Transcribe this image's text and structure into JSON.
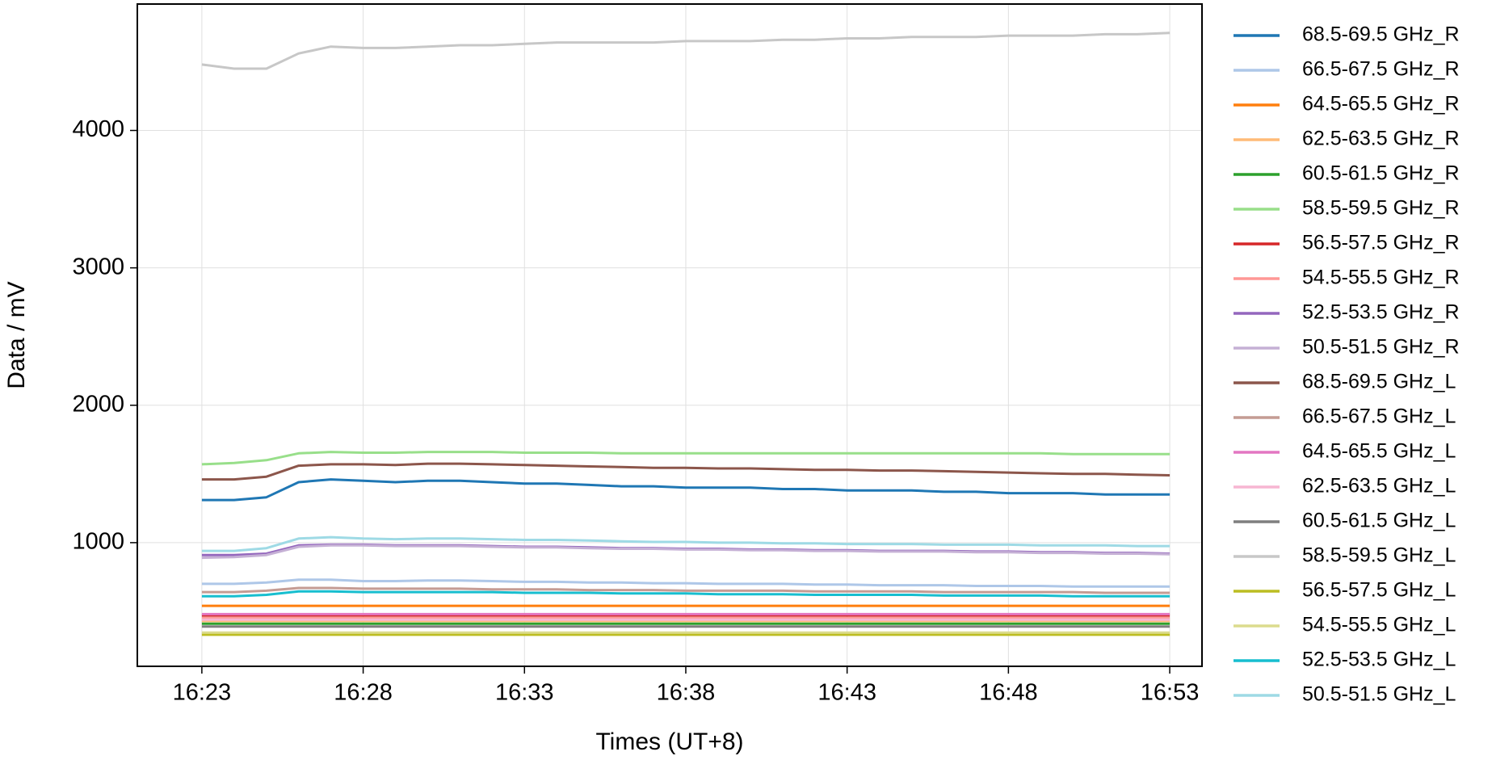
{
  "chart_data": {
    "type": "line",
    "x_label": "Times (UT+8)",
    "y_label": "Data / mV",
    "x": [
      "16:23",
      "16:24",
      "16:25",
      "16:26",
      "16:27",
      "16:28",
      "16:29",
      "16:30",
      "16:31",
      "16:32",
      "16:33",
      "16:34",
      "16:35",
      "16:36",
      "16:37",
      "16:38",
      "16:39",
      "16:40",
      "16:41",
      "16:42",
      "16:43",
      "16:44",
      "16:45",
      "16:46",
      "16:47",
      "16:48",
      "16:49",
      "16:50",
      "16:51",
      "16:52",
      "16:53"
    ],
    "xlim": [
      "16:21",
      "16:54"
    ],
    "xticks": [
      "16:23",
      "16:28",
      "16:33",
      "16:38",
      "16:43",
      "16:48",
      "16:53"
    ],
    "ylim": [
      100,
      4920
    ],
    "yticks": [
      1000,
      2000,
      3000,
      4000
    ],
    "grid": true,
    "legend": "outside-right",
    "series": [
      {
        "name": "68.5-69.5 GHz_R",
        "color": "#1f77b4",
        "values": [
          1310,
          1310,
          1330,
          1440,
          1460,
          1450,
          1440,
          1450,
          1450,
          1440,
          1430,
          1430,
          1420,
          1410,
          1410,
          1400,
          1400,
          1400,
          1390,
          1390,
          1380,
          1380,
          1380,
          1370,
          1370,
          1360,
          1360,
          1360,
          1350,
          1350,
          1350
        ]
      },
      {
        "name": "66.5-67.5 GHz_R",
        "color": "#aec7e8",
        "values": [
          700,
          700,
          710,
          730,
          730,
          720,
          720,
          725,
          725,
          720,
          715,
          715,
          710,
          710,
          705,
          705,
          700,
          700,
          700,
          695,
          695,
          690,
          690,
          690,
          685,
          685,
          685,
          680,
          680,
          680,
          680
        ]
      },
      {
        "name": "64.5-65.5 GHz_R",
        "color": "#ff7f0e",
        "values": [
          540,
          540,
          540,
          540,
          540,
          540,
          540,
          540,
          540,
          540,
          540,
          540,
          540,
          540,
          540,
          540,
          540,
          540,
          540,
          540,
          540,
          540,
          540,
          540,
          540,
          540,
          540,
          540,
          540,
          540,
          540
        ]
      },
      {
        "name": "62.5-63.5 GHz_R",
        "color": "#ffbb78",
        "values": [
          430,
          430,
          430,
          430,
          430,
          430,
          430,
          430,
          430,
          430,
          430,
          430,
          430,
          430,
          430,
          430,
          430,
          430,
          430,
          430,
          430,
          430,
          430,
          430,
          430,
          430,
          430,
          430,
          430,
          430,
          430
        ]
      },
      {
        "name": "60.5-61.5 GHz_R",
        "color": "#2ca02c",
        "values": [
          410,
          410,
          410,
          410,
          410,
          410,
          410,
          410,
          410,
          410,
          410,
          410,
          410,
          410,
          410,
          410,
          410,
          410,
          410,
          410,
          410,
          410,
          410,
          410,
          410,
          410,
          410,
          410,
          410,
          410,
          410
        ]
      },
      {
        "name": "58.5-59.5 GHz_R",
        "color": "#98df8a",
        "values": [
          1570,
          1580,
          1600,
          1650,
          1660,
          1655,
          1655,
          1660,
          1660,
          1660,
          1655,
          1655,
          1655,
          1650,
          1650,
          1650,
          1650,
          1650,
          1650,
          1650,
          1650,
          1650,
          1650,
          1650,
          1650,
          1650,
          1650,
          1645,
          1645,
          1645,
          1645
        ]
      },
      {
        "name": "56.5-57.5 GHz_R",
        "color": "#d62728",
        "values": [
          470,
          470,
          470,
          470,
          470,
          470,
          470,
          470,
          470,
          470,
          470,
          470,
          470,
          470,
          470,
          470,
          470,
          470,
          470,
          470,
          470,
          470,
          470,
          470,
          470,
          470,
          470,
          470,
          470,
          470,
          470
        ]
      },
      {
        "name": "54.5-55.5 GHz_R",
        "color": "#ff9896",
        "values": [
          450,
          450,
          450,
          450,
          450,
          450,
          450,
          450,
          450,
          450,
          450,
          450,
          450,
          450,
          450,
          450,
          450,
          450,
          450,
          450,
          450,
          450,
          450,
          450,
          450,
          450,
          450,
          450,
          450,
          450,
          450
        ]
      },
      {
        "name": "52.5-53.5 GHz_R",
        "color": "#9467bd",
        "values": [
          910,
          910,
          920,
          980,
          985,
          985,
          980,
          980,
          980,
          975,
          970,
          970,
          965,
          960,
          960,
          955,
          955,
          950,
          950,
          945,
          945,
          940,
          940,
          940,
          935,
          935,
          930,
          930,
          925,
          925,
          920
        ]
      },
      {
        "name": "50.5-51.5 GHz_R",
        "color": "#c5b0d5",
        "values": [
          890,
          895,
          910,
          970,
          980,
          980,
          975,
          975,
          975,
          970,
          965,
          965,
          960,
          955,
          955,
          950,
          950,
          945,
          945,
          940,
          940,
          935,
          935,
          935,
          930,
          930,
          925,
          925,
          920,
          920,
          915
        ]
      },
      {
        "name": "68.5-69.5 GHz_L",
        "color": "#8c564b",
        "values": [
          1460,
          1460,
          1480,
          1560,
          1570,
          1570,
          1565,
          1575,
          1575,
          1570,
          1565,
          1560,
          1555,
          1550,
          1545,
          1545,
          1540,
          1540,
          1535,
          1530,
          1530,
          1525,
          1525,
          1520,
          1515,
          1510,
          1505,
          1500,
          1500,
          1495,
          1490
        ]
      },
      {
        "name": "66.5-67.5 GHz_L",
        "color": "#c49c94",
        "values": [
          640,
          640,
          650,
          670,
          670,
          665,
          665,
          665,
          665,
          660,
          660,
          660,
          655,
          655,
          655,
          650,
          650,
          650,
          650,
          645,
          645,
          645,
          645,
          640,
          640,
          640,
          640,
          640,
          635,
          635,
          635
        ]
      },
      {
        "name": "64.5-65.5 GHz_L",
        "color": "#e377c2",
        "values": [
          480,
          480,
          480,
          480,
          480,
          480,
          480,
          480,
          480,
          480,
          480,
          480,
          480,
          480,
          480,
          480,
          480,
          480,
          480,
          480,
          480,
          480,
          480,
          480,
          480,
          480,
          480,
          480,
          480,
          480,
          480
        ]
      },
      {
        "name": "62.5-63.5 GHz_L",
        "color": "#f7b6d2",
        "values": [
          440,
          440,
          440,
          440,
          440,
          440,
          440,
          440,
          440,
          440,
          440,
          440,
          440,
          440,
          440,
          440,
          440,
          440,
          440,
          440,
          440,
          440,
          440,
          440,
          440,
          440,
          440,
          440,
          440,
          440,
          440
        ]
      },
      {
        "name": "60.5-61.5 GHz_L",
        "color": "#7f7f7f",
        "values": [
          390,
          390,
          390,
          390,
          390,
          390,
          390,
          390,
          390,
          390,
          390,
          390,
          390,
          390,
          390,
          390,
          390,
          390,
          390,
          390,
          390,
          390,
          390,
          390,
          390,
          390,
          390,
          390,
          390,
          390,
          390
        ]
      },
      {
        "name": "58.5-59.5 GHz_L",
        "color": "#c7c7c7",
        "values": [
          4480,
          4450,
          4450,
          4560,
          4610,
          4600,
          4600,
          4610,
          4620,
          4620,
          4630,
          4640,
          4640,
          4640,
          4640,
          4650,
          4650,
          4650,
          4660,
          4660,
          4670,
          4670,
          4680,
          4680,
          4680,
          4690,
          4690,
          4690,
          4700,
          4700,
          4710
        ]
      },
      {
        "name": "56.5-57.5 GHz_L",
        "color": "#bcbd22",
        "values": [
          330,
          330,
          330,
          330,
          330,
          330,
          330,
          330,
          330,
          330,
          330,
          330,
          330,
          330,
          330,
          330,
          330,
          330,
          330,
          330,
          330,
          330,
          330,
          330,
          330,
          330,
          330,
          330,
          330,
          330,
          330
        ]
      },
      {
        "name": "54.5-55.5 GHz_L",
        "color": "#dbdb8d",
        "values": [
          345,
          345,
          345,
          345,
          345,
          345,
          345,
          345,
          345,
          345,
          345,
          345,
          345,
          345,
          345,
          345,
          345,
          345,
          345,
          345,
          345,
          345,
          345,
          345,
          345,
          345,
          345,
          345,
          345,
          345,
          345
        ]
      },
      {
        "name": "52.5-53.5 GHz_L",
        "color": "#17becf",
        "values": [
          610,
          610,
          620,
          645,
          645,
          640,
          640,
          640,
          640,
          640,
          635,
          635,
          635,
          630,
          630,
          630,
          625,
          625,
          625,
          620,
          620,
          620,
          620,
          615,
          615,
          615,
          615,
          610,
          610,
          610,
          610
        ]
      },
      {
        "name": "50.5-51.5 GHz_L",
        "color": "#9edae5",
        "values": [
          940,
          940,
          960,
          1030,
          1040,
          1030,
          1025,
          1030,
          1030,
          1025,
          1020,
          1020,
          1015,
          1010,
          1005,
          1005,
          1000,
          1000,
          995,
          995,
          990,
          990,
          990,
          985,
          985,
          985,
          980,
          980,
          980,
          975,
          975
        ]
      }
    ]
  }
}
